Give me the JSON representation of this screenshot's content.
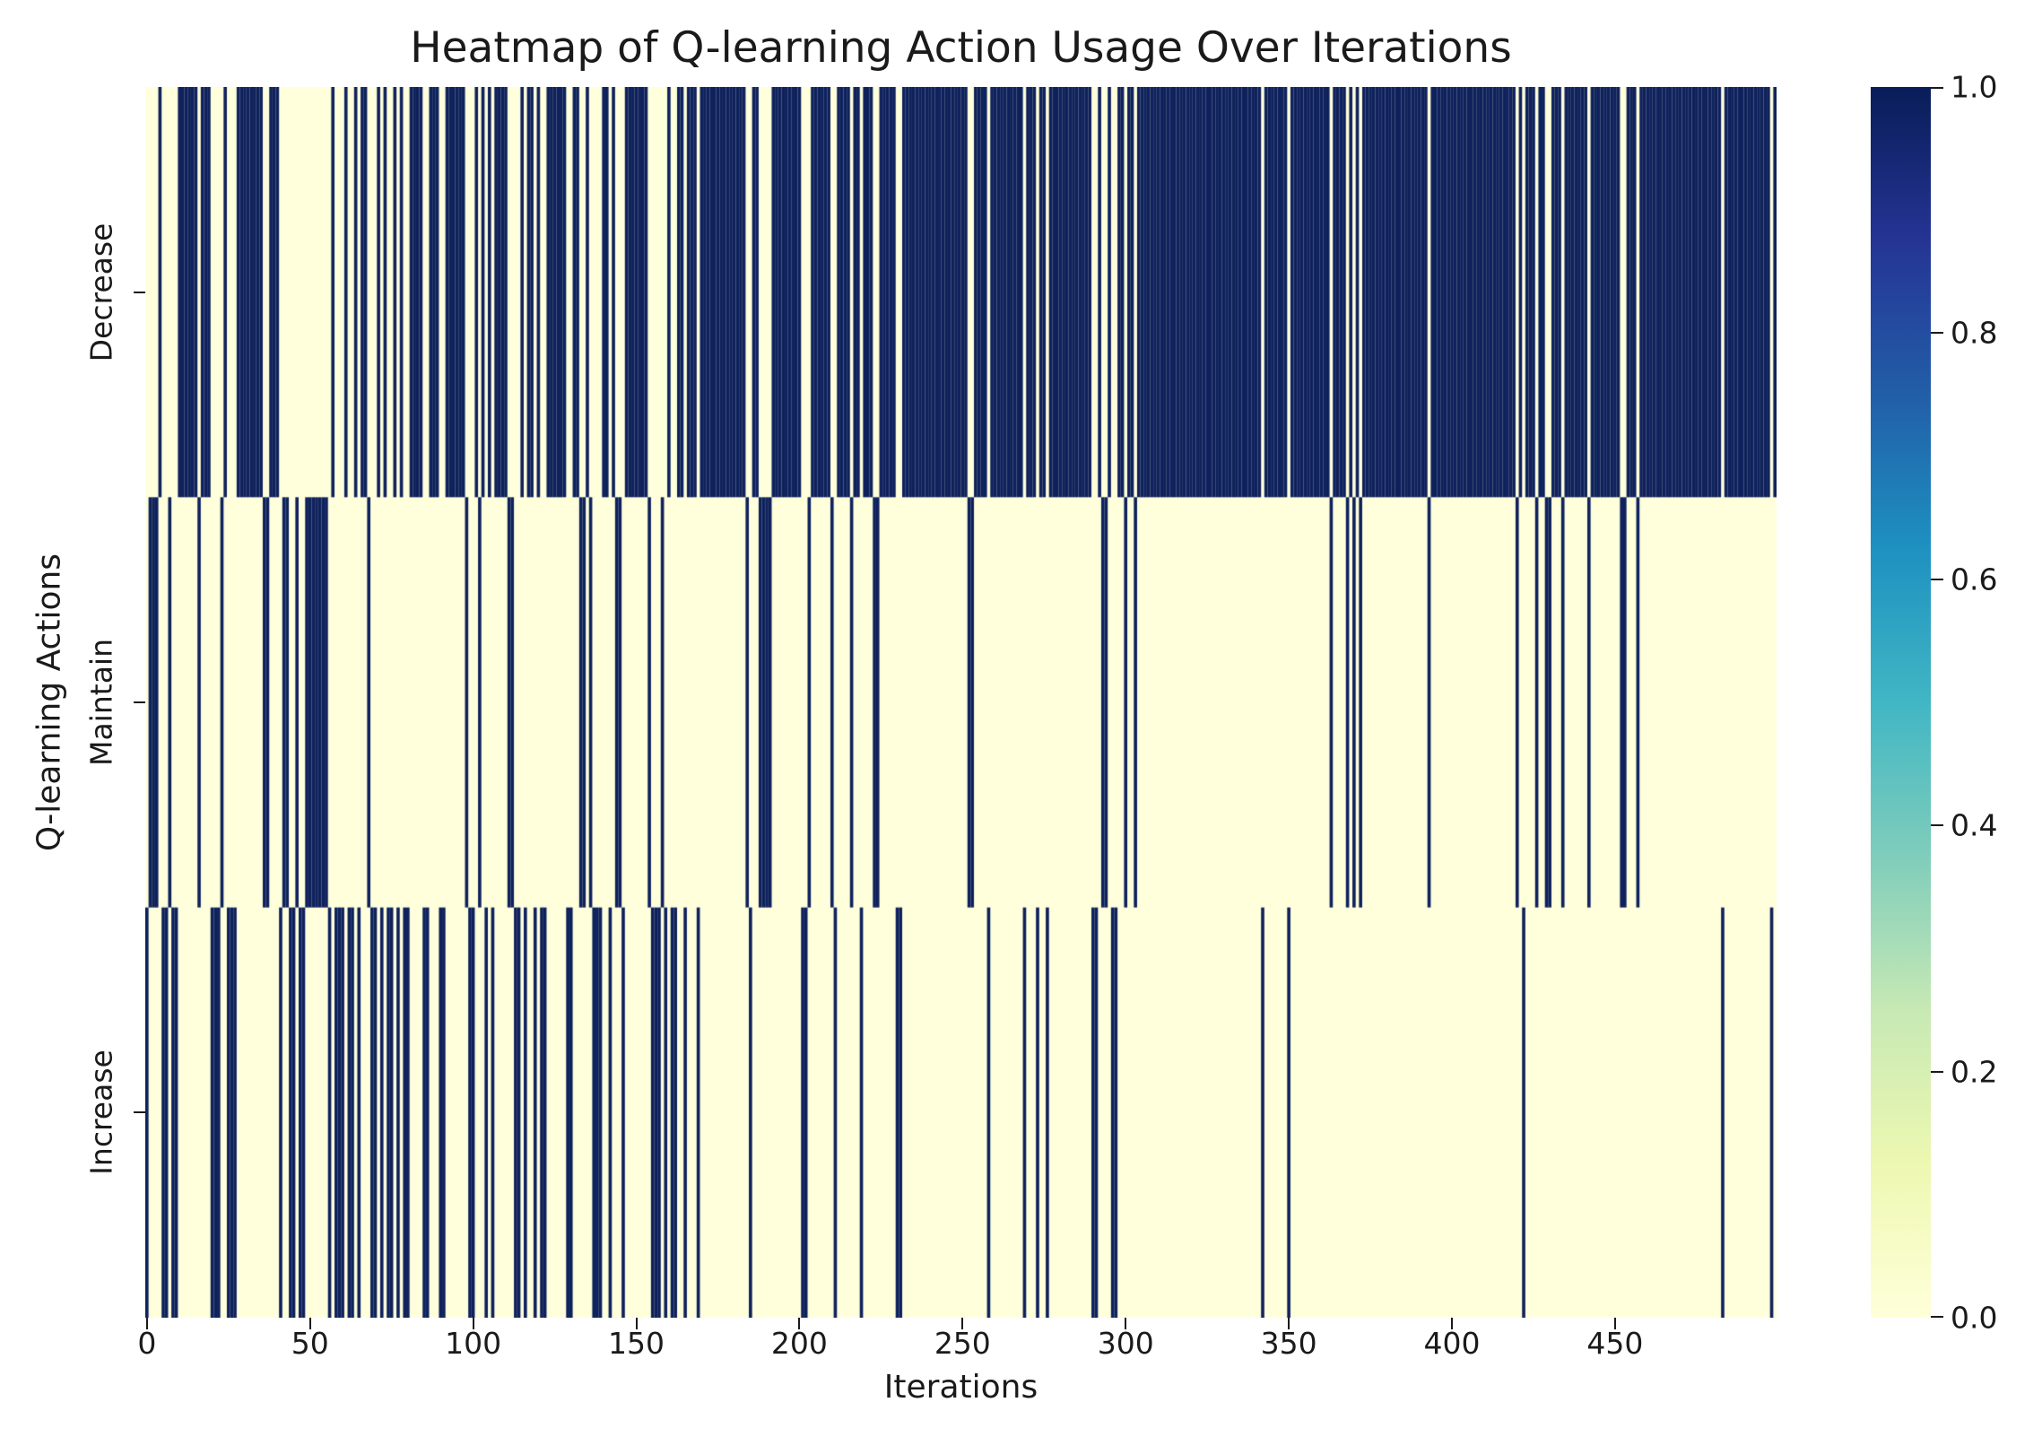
{
  "title": "Heatmap of Q-learning Action Usage Over Iterations",
  "x_axis": {
    "label": "Iterations",
    "ticks": [
      0,
      50,
      100,
      150,
      200,
      250,
      300,
      350,
      400,
      450
    ]
  },
  "y_axis": {
    "label": "Q-learning Actions",
    "categories": [
      "Decrease",
      "Maintain",
      "Increase"
    ]
  },
  "colorbar": {
    "colormap": "YlGnBu",
    "tick_labels": [
      "1.0",
      "0.8",
      "0.6",
      "0.4",
      "0.2",
      "0.0"
    ],
    "tick_values": [
      1.0,
      0.8,
      0.6,
      0.4,
      0.2,
      0.0
    ],
    "gradient_stops": [
      "#ffffd9",
      "#edf8b1",
      "#c7e9b4",
      "#7fcdbb",
      "#41b6c4",
      "#1d91c0",
      "#225ea8",
      "#253494",
      "#081d58"
    ]
  },
  "colors": {
    "value_one": "#0e215c",
    "value_zero": "#ffffdc",
    "text": "#1a1a1a",
    "background": "#ffffff"
  },
  "chart_data": {
    "type": "heatmap",
    "rows": [
      "Decrease",
      "Maintain",
      "Increase"
    ],
    "row_codes": {
      "D": "Decrease",
      "M": "Maintain",
      "I": "Increase"
    },
    "n_iterations": 500,
    "value_range": [
      0,
      1
    ],
    "encoding": "one character per iteration (x axis); the coded action row has value 1 (dark) in that column, the other two rows have value 0 (light)",
    "actions_segments": [
      "IMMMDIIMII",
      "DDDDDDMDDD",
      "IIIMDIIIDD",
      "DDDDDDMMDD",
      "DIMMIIMII",
      "MMMMMMM",
      "IDIIIDIIDI",
      "DDMIIDIDII",
      "DIDIIDDDDI",
      "IDDDIIDDDD",
      "DDMIIDMDID",
      "IDDDDMMIID",
      "IDDIDIIDDD",
      "DDDIIDDMMD",
      "MIIIDDIDMM",
      "IDDDDDDDMI",
      "IIMIDIIDDI",
      "DDDIDDDDDD",
      "DDDDDDDDMI",
      "DDMMMMDDDD",
      "DDDDDIIMDD",
      "DDDDMIDDDD",
      "MDDIDDDMMD",
      "DDDDIIDDDD",
      "DDDDDDDDDD",
      "DDDDDDMMDD",
      "DDIDDDDDDD",
      "DDDIDDDIDD",
      "IDDDDDDDDD",
      "DDDDIIDMMD",
      "IIDDMDDMDD",
      "DDDDDDDDDD",
      "DDDDDDDDDD",
      "DDDDDDDDDD",
      "DDDDDDIDDD",
      "DDDDIDDDDD",
      "DDDDDDDMDD",
      "DDMDMDMDDD",
      "DDDDDDDDDD",
      "DDDDDDDMDD",
      "DDDDDDDDDD",
      "DDDDDDDDDD",
      "DDDDMDIDDD",
      "MDDMMDDDMD",
      "DDDDDDMDDD",
      "DDDDDDMMDD",
      "DMDDDDDDDD",
      "DDDDDDDDDD",
      "DDDDDDDIDD",
      "DDDDDDDDDD",
      "DDID"
    ]
  }
}
